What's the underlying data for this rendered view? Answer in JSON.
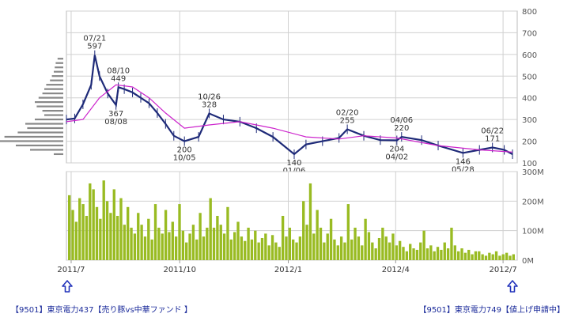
{
  "chart_data": [
    {
      "type": "line",
      "subtype": "candlestick-with-moving-average",
      "ylim": [
        100,
        800
      ],
      "yticks": [
        "100",
        "200",
        "300",
        "400",
        "500",
        "600",
        "700",
        "800"
      ],
      "xticks": [
        "2011/7",
        "2011/10",
        "2012/1",
        "2012/4",
        "2012/7"
      ],
      "grid": true,
      "series": [
        {
          "role": "price",
          "color": "#1e2a78",
          "x": [
            "2011/6/27",
            "2011/7/4",
            "2011/7/11",
            "2011/7/18",
            "2011/7/21",
            "2011/7/25",
            "2011/8/1",
            "2011/8/8",
            "2011/8/10",
            "2011/8/15",
            "2011/8/22",
            "2011/8/29",
            "2011/9/5",
            "2011/9/12",
            "2011/9/19",
            "2011/9/26",
            "2011/10/5",
            "2011/10/17",
            "2011/10/26",
            "2011/11/7",
            "2011/11/21",
            "2011/12/5",
            "2011/12/19",
            "2012/1/6",
            "2012/1/16",
            "2012/1/30",
            "2012/2/13",
            "2012/2/20",
            "2012/3/5",
            "2012/3/19",
            "2012/4/2",
            "2012/4/6",
            "2012/4/23",
            "2012/5/7",
            "2012/5/28",
            "2012/6/11",
            "2012/6/22",
            "2012/7/2",
            "2012/7/9"
          ],
          "y": [
            300,
            305,
            370,
            460,
            597,
            500,
            420,
            367,
            449,
            440,
            425,
            400,
            375,
            330,
            280,
            225,
            200,
            220,
            328,
            300,
            290,
            260,
            220,
            140,
            185,
            200,
            215,
            255,
            225,
            205,
            204,
            220,
            205,
            180,
            146,
            160,
            171,
            160,
            140
          ]
        },
        {
          "role": "moving-average",
          "color": "#cc22cc",
          "x": [
            "2011/6/27",
            "2011/7/11",
            "2011/7/25",
            "2011/8/8",
            "2011/8/22",
            "2011/9/5",
            "2011/9/19",
            "2011/10/5",
            "2011/10/26",
            "2011/11/21",
            "2011/12/19",
            "2012/1/16",
            "2012/2/13",
            "2012/3/5",
            "2012/4/2",
            "2012/5/7",
            "2012/6/11",
            "2012/7/9"
          ],
          "y": [
            290,
            300,
            400,
            460,
            450,
            400,
            330,
            260,
            275,
            290,
            260,
            220,
            210,
            225,
            215,
            180,
            160,
            150
          ]
        }
      ],
      "annotations": [
        {
          "date": "07/21",
          "value": "597",
          "x": "2011/7/21",
          "y": 597,
          "pos": "above"
        },
        {
          "date": "08/10",
          "value": "449",
          "x": "2011/8/10",
          "y": 449,
          "pos": "above"
        },
        {
          "date": "08/08",
          "value": "367",
          "x": "2011/8/8",
          "y": 367,
          "pos": "below"
        },
        {
          "date": "10/05",
          "value": "200",
          "x": "2011/10/5",
          "y": 200,
          "pos": "below"
        },
        {
          "date": "10/26",
          "value": "328",
          "x": "2011/10/26",
          "y": 328,
          "pos": "above"
        },
        {
          "date": "01/06",
          "value": "140",
          "x": "2012/1/6",
          "y": 140,
          "pos": "below"
        },
        {
          "date": "02/20",
          "value": "255",
          "x": "2012/2/20",
          "y": 255,
          "pos": "above"
        },
        {
          "date": "04/06",
          "value": "220",
          "x": "2012/4/6",
          "y": 220,
          "pos": "above"
        },
        {
          "date": "04/02",
          "value": "204",
          "x": "2012/4/2",
          "y": 204,
          "pos": "below"
        },
        {
          "date": "05/28",
          "value": "146",
          "x": "2012/5/28",
          "y": 146,
          "pos": "below"
        },
        {
          "date": "06/22",
          "value": "171",
          "x": "2012/6/22",
          "y": 171,
          "pos": "above"
        }
      ],
      "volume_profile": {
        "color": "#888888",
        "price_levels": [
          580,
          560,
          540,
          520,
          500,
          480,
          460,
          440,
          420,
          400,
          380,
          360,
          340,
          320,
          300,
          280,
          260,
          240,
          220,
          200,
          180,
          160,
          140
        ],
        "relative_volume": [
          0.06,
          0.08,
          0.09,
          0.1,
          0.12,
          0.14,
          0.18,
          0.2,
          0.22,
          0.26,
          0.3,
          0.28,
          0.22,
          0.2,
          0.3,
          0.4,
          0.38,
          0.48,
          0.62,
          0.72,
          0.5,
          0.35,
          0.1
        ]
      }
    },
    {
      "type": "bar",
      "role": "volume",
      "ylim": [
        0,
        300
      ],
      "unit": "M",
      "yticks": [
        "0M",
        "100M",
        "200M",
        "300M"
      ],
      "color": "#99bb22",
      "x_start": "2011/6/27",
      "x_end": "2012/7/13",
      "values": [
        220,
        170,
        130,
        210,
        190,
        150,
        260,
        240,
        180,
        140,
        270,
        200,
        160,
        240,
        150,
        210,
        120,
        180,
        110,
        90,
        160,
        120,
        80,
        140,
        70,
        190,
        110,
        90,
        170,
        95,
        130,
        80,
        190,
        100,
        60,
        90,
        120,
        70,
        160,
        80,
        110,
        210,
        110,
        150,
        120,
        90,
        180,
        70,
        95,
        130,
        80,
        65,
        110,
        70,
        100,
        60,
        75,
        90,
        50,
        85,
        60,
        45,
        150,
        80,
        110,
        70,
        60,
        80,
        200,
        120,
        260,
        90,
        170,
        110,
        60,
        90,
        140,
        70,
        50,
        80,
        60,
        190,
        70,
        110,
        80,
        50,
        140,
        95,
        60,
        40,
        75,
        110,
        80,
        60,
        90,
        50,
        65,
        45,
        30,
        55,
        40,
        35,
        60,
        100,
        40,
        50,
        30,
        45,
        35,
        60,
        40,
        110,
        50,
        30,
        40,
        25,
        35,
        20,
        30,
        30,
        20,
        15,
        25,
        20,
        30,
        15,
        20,
        25,
        15,
        20
      ]
    }
  ],
  "navigation": {
    "prev_label": "【9501】東京電力437【売り豚vs中華ファンド 】",
    "next_label": "【9501】東京電力749【値上げ申請中】",
    "prev_arrow_icon": "up-arrow-icon",
    "next_arrow_icon": "up-arrow-icon",
    "link_color": "#1a2a9a",
    "arrow_color": "#2233bb"
  }
}
